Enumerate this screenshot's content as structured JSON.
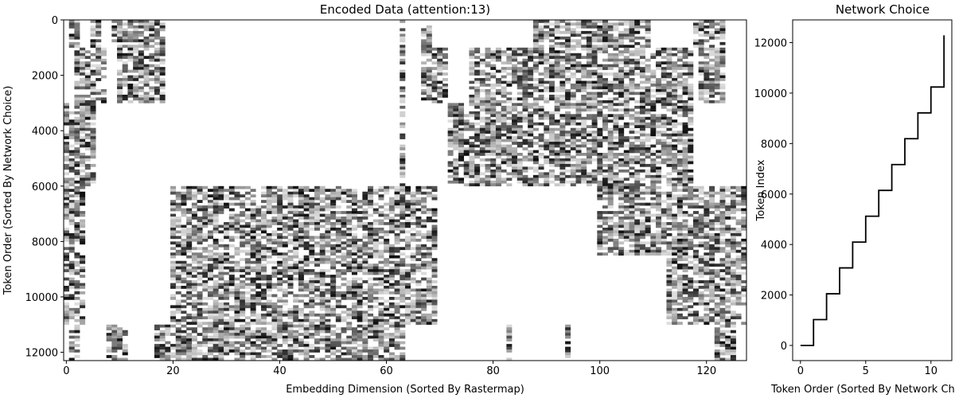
{
  "chart_data": [
    {
      "type": "heatmap",
      "title": "Encoded Data (attention:13)",
      "xlabel": "Embedding Dimension (Sorted By Rastermap)",
      "ylabel": "Token Order (Sorted By Network Choice)",
      "xlim": [
        -0.5,
        127.5
      ],
      "ylim": [
        12300,
        0
      ],
      "xticks": [
        0,
        20,
        40,
        60,
        80,
        100,
        120
      ],
      "yticks": [
        0,
        2000,
        4000,
        6000,
        8000,
        10000,
        12000
      ],
      "colormap": "gray_r",
      "n_columns": 128,
      "n_rows": 12288,
      "blocks": [
        {
          "row_range": [
            0,
            1000
          ],
          "dark_columns": [
            [
              1,
              3
            ],
            [
              5,
              7
            ],
            [
              9,
              19
            ],
            [
              63,
              64
            ],
            [
              67,
              69
            ],
            [
              88,
              110
            ],
            [
              118,
              124
            ]
          ]
        },
        {
          "row_range": [
            1000,
            3000
          ],
          "dark_columns": [
            [
              2,
              8
            ],
            [
              10,
              19
            ],
            [
              63,
              64
            ],
            [
              67,
              72
            ],
            [
              76,
              118
            ],
            [
              119,
              124
            ]
          ]
        },
        {
          "row_range": [
            3000,
            6000
          ],
          "dark_columns": [
            [
              0,
              6
            ],
            [
              63,
              64
            ],
            [
              72,
              118
            ]
          ]
        },
        {
          "row_range": [
            6000,
            8500
          ],
          "dark_columns": [
            [
              0,
              4
            ],
            [
              20,
              70
            ],
            [
              100,
              128
            ]
          ]
        },
        {
          "row_range": [
            8500,
            11000
          ],
          "dark_columns": [
            [
              0,
              4
            ],
            [
              20,
              70
            ],
            [
              113,
              128
            ]
          ]
        },
        {
          "row_range": [
            11000,
            12300
          ],
          "dark_columns": [
            [
              1,
              3
            ],
            [
              8,
              12
            ],
            [
              17,
              64
            ],
            [
              83,
              84
            ],
            [
              94,
              95
            ],
            [
              122,
              126
            ]
          ]
        }
      ]
    },
    {
      "type": "line",
      "title": "Network Choice",
      "xlabel": "Token Order (Sorted By Network Choice)",
      "ylabel": "Token Index",
      "x": [
        0,
        1,
        1,
        2,
        2,
        3,
        3,
        4,
        4,
        5,
        5,
        6,
        6,
        7,
        7,
        8,
        8,
        9,
        9,
        10,
        10,
        11,
        11
      ],
      "y": [
        0,
        0,
        1024,
        1024,
        2048,
        2048,
        3072,
        3072,
        4096,
        4096,
        5120,
        5120,
        6144,
        6144,
        7168,
        7168,
        8192,
        8192,
        9216,
        9216,
        10240,
        10240,
        11264
      ],
      "line_end": [
        11,
        12288
      ],
      "xlim": [
        -0.6,
        11.6
      ],
      "ylim": [
        -600,
        12900
      ],
      "xticks": [
        0,
        5,
        10
      ],
      "yticks": [
        0,
        2000,
        4000,
        6000,
        8000,
        10000,
        12000
      ],
      "color": "#000000"
    }
  ]
}
